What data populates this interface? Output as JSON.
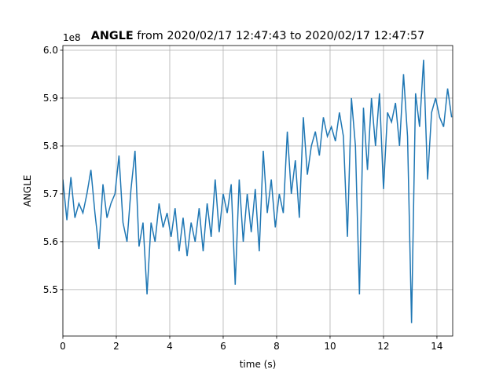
{
  "chart_data": {
    "type": "line",
    "title_bold": "ANGLE",
    "title": "from 2020/02/17 12:47:43 to 2020/02/17 12:47:57",
    "offset_text": "1e8",
    "x_label": "time (s)",
    "y_label": "ANGLE",
    "xlim": [
      0,
      14.59
    ],
    "ylim": [
      5.403,
      6.0098
    ],
    "xticks": [
      0,
      2,
      4,
      6,
      8,
      10,
      12,
      14
    ],
    "yticks": [
      5.5,
      5.6,
      5.7,
      5.8,
      5.9,
      {
        "value": 6,
        "label": "6.0"
      }
    ],
    "grid": true,
    "x": [
      0,
      0.15,
      0.3,
      0.45,
      0.6,
      0.75,
      0.9,
      1.05,
      1.2,
      1.35,
      1.5,
      1.65,
      1.8,
      1.95,
      2.1,
      2.25,
      2.4,
      2.55,
      2.7,
      2.85,
      3,
      3.15,
      3.3,
      3.45,
      3.6,
      3.75,
      3.9,
      4.05,
      4.2,
      4.35,
      4.5,
      4.65,
      4.8,
      4.95,
      5.1,
      5.25,
      5.4,
      5.55,
      5.7,
      5.85,
      6,
      6.15,
      6.3,
      6.45,
      6.6,
      6.75,
      6.9,
      7.05,
      7.2,
      7.35,
      7.5,
      7.65,
      7.8,
      7.95,
      8.1,
      8.25,
      8.4,
      8.55,
      8.7,
      8.85,
      9,
      9.15,
      9.3,
      9.45,
      9.6,
      9.75,
      9.9,
      10.05,
      10.2,
      10.35,
      10.5,
      10.65,
      10.8,
      10.95,
      11.1,
      11.25,
      11.4,
      11.55,
      11.7,
      11.85,
      12,
      12.15,
      12.3,
      12.45,
      12.6,
      12.75,
      12.9,
      13.05,
      13.2,
      13.35,
      13.5,
      13.65,
      13.8,
      13.95,
      14.1,
      14.25,
      14.4,
      14.55
    ],
    "series": [
      {
        "name": "ANGLE",
        "color": "#1f77b4",
        "values": [
          5.73,
          5.645,
          5.735,
          5.65,
          5.68,
          5.66,
          5.7,
          5.75,
          5.66,
          5.585,
          5.72,
          5.65,
          5.68,
          5.7,
          5.78,
          5.64,
          5.6,
          5.71,
          5.79,
          5.59,
          5.64,
          5.49,
          5.64,
          5.6,
          5.68,
          5.63,
          5.66,
          5.61,
          5.67,
          5.58,
          5.65,
          5.57,
          5.64,
          5.6,
          5.67,
          5.58,
          5.68,
          5.61,
          5.73,
          5.62,
          5.7,
          5.66,
          5.72,
          5.51,
          5.73,
          5.6,
          5.7,
          5.62,
          5.71,
          5.58,
          5.79,
          5.66,
          5.73,
          5.63,
          5.7,
          5.66,
          5.83,
          5.7,
          5.77,
          5.65,
          5.86,
          5.74,
          5.8,
          5.83,
          5.78,
          5.86,
          5.82,
          5.84,
          5.81,
          5.87,
          5.82,
          5.61,
          5.9,
          5.8,
          5.49,
          5.88,
          5.75,
          5.9,
          5.8,
          5.91,
          5.71,
          5.87,
          5.85,
          5.89,
          5.8,
          5.95,
          5.82,
          5.43,
          5.91,
          5.84,
          5.98,
          5.73,
          5.87,
          5.9,
          5.86,
          5.84,
          5.92,
          5.86
        ]
      }
    ]
  }
}
